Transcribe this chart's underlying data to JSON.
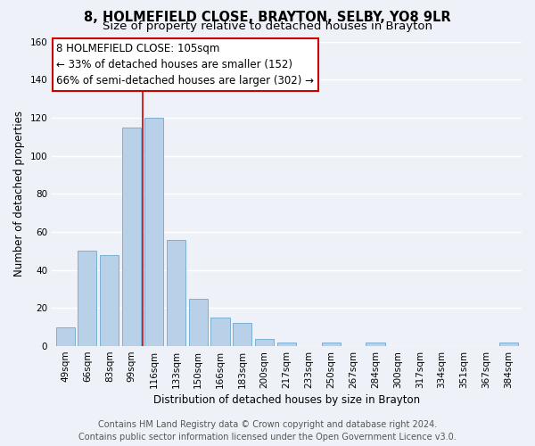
{
  "title_line1": "8, HOLMEFIELD CLOSE, BRAYTON, SELBY, YO8 9LR",
  "title_line2": "Size of property relative to detached houses in Brayton",
  "xlabel": "Distribution of detached houses by size in Brayton",
  "ylabel": "Number of detached properties",
  "categories": [
    "49sqm",
    "66sqm",
    "83sqm",
    "99sqm",
    "116sqm",
    "133sqm",
    "150sqm",
    "166sqm",
    "183sqm",
    "200sqm",
    "217sqm",
    "233sqm",
    "250sqm",
    "267sqm",
    "284sqm",
    "300sqm",
    "317sqm",
    "334sqm",
    "351sqm",
    "367sqm",
    "384sqm"
  ],
  "values": [
    10,
    50,
    48,
    115,
    120,
    56,
    25,
    15,
    12,
    4,
    2,
    0,
    2,
    0,
    2,
    0,
    0,
    0,
    0,
    0,
    2
  ],
  "bar_color": "#b8d0e8",
  "bar_edge_color": "#7aafd4",
  "vline_color": "#cc0000",
  "vline_x": 3.5,
  "annotation_line1": "8 HOLMEFIELD CLOSE: 105sqm",
  "annotation_line2": "← 33% of detached houses are smaller (152)",
  "annotation_line3": "66% of semi-detached houses are larger (302) →",
  "ylim": [
    0,
    160
  ],
  "yticks": [
    0,
    20,
    40,
    60,
    80,
    100,
    120,
    140,
    160
  ],
  "footer_line1": "Contains HM Land Registry data © Crown copyright and database right 2024.",
  "footer_line2": "Contains public sector information licensed under the Open Government Licence v3.0.",
  "bg_color": "#eef2f8",
  "plot_bg_color": "#eef2f8",
  "grid_color": "#ffffff",
  "title1_fontsize": 10.5,
  "title2_fontsize": 9.5,
  "axis_label_fontsize": 8.5,
  "tick_fontsize": 7.5,
  "annotation_fontsize": 8.5,
  "footer_fontsize": 7
}
